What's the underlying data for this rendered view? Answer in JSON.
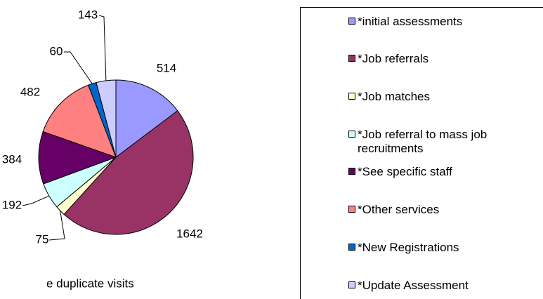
{
  "chart_data": {
    "type": "pie",
    "categories": [
      "*initial assessments",
      "*Job referrals",
      "*Job matches",
      "*Job referral to mass job recruitments",
      "*See specific staff",
      "*Other services",
      "*New Registrations",
      "*Update Assessment"
    ],
    "values": [
      514,
      1642,
      75,
      192,
      384,
      482,
      60,
      143
    ],
    "colors": [
      "#9999ff",
      "#993366",
      "#ffffcc",
      "#ccffff",
      "#660066",
      "#ff8080",
      "#0066cc",
      "#ccccff"
    ],
    "note": "e duplicate visits"
  }
}
